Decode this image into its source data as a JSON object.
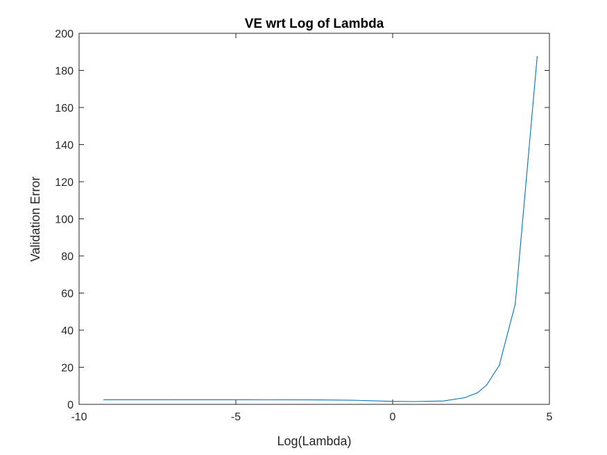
{
  "chart_data": {
    "type": "line",
    "title": "VE wrt Log of Lambda",
    "xlabel": "Log(Lambda)",
    "ylabel": "Validation Error",
    "xlim": [
      -10,
      5
    ],
    "ylim": [
      0,
      200
    ],
    "xticks": [
      -10,
      -5,
      0,
      5
    ],
    "yticks": [
      0,
      20,
      40,
      60,
      80,
      100,
      120,
      140,
      160,
      180,
      200
    ],
    "xtick_labels": [
      "-10",
      "-5",
      "0",
      "5"
    ],
    "ytick_labels": [
      "0",
      "20",
      "40",
      "60",
      "80",
      "100",
      "120",
      "140",
      "160",
      "180",
      "200"
    ],
    "grid": false,
    "box": true,
    "series": [
      {
        "color": "#0072BD",
        "x": [
          -9.21,
          -6.91,
          -4.61,
          -2.3,
          -1.2,
          0.0,
          0.69,
          1.61,
          2.3,
          2.71,
          3.0,
          3.4,
          3.91,
          4.61
        ],
        "y": [
          2.5,
          2.5,
          2.5,
          2.4,
          2.2,
          1.6,
          1.5,
          1.8,
          3.6,
          6.3,
          10.5,
          21.0,
          54.0,
          187.5
        ]
      }
    ]
  }
}
